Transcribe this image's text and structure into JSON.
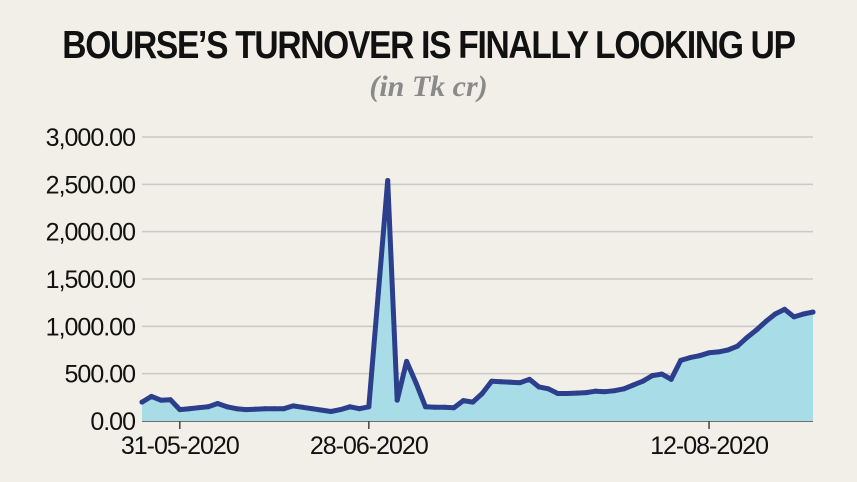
{
  "chart_data": {
    "type": "area",
    "title": "BOURSE’S TURNOVER IS FINALLY LOOKING UP",
    "subtitle": "(in Tk cr)",
    "xlabel": "",
    "ylabel": "",
    "ylim": [
      0,
      3000
    ],
    "y_ticks": [
      0,
      500,
      1000,
      1500,
      2000,
      2500,
      3000
    ],
    "y_tick_labels": [
      "0.00",
      "500.00",
      "1,000.00",
      "1,500.00",
      "2,000.00",
      "2,500.00",
      "3,000.00"
    ],
    "x_tick_labels": [
      {
        "label": "31-05-2020",
        "index": 4
      },
      {
        "label": "28-06-2020",
        "index": 24
      },
      {
        "label": "12-08-2020",
        "index": 60
      }
    ],
    "grid": true,
    "colors": {
      "line": "#2b3f8c",
      "fill": "#a8dce6",
      "grid": "#c9c9c9",
      "background": "#f2efe8"
    },
    "values": [
      200,
      260,
      220,
      225,
      120,
      130,
      140,
      150,
      185,
      150,
      130,
      120,
      125,
      130,
      130,
      130,
      160,
      145,
      130,
      115,
      100,
      120,
      150,
      130,
      150,
      1350,
      2540,
      220,
      630,
      400,
      150,
      145,
      145,
      140,
      215,
      200,
      290,
      420,
      415,
      410,
      405,
      440,
      360,
      340,
      290,
      290,
      295,
      300,
      315,
      310,
      320,
      340,
      380,
      420,
      480,
      495,
      440,
      640,
      670,
      690,
      720,
      730,
      750,
      790,
      880,
      960,
      1050,
      1130,
      1180,
      1100,
      1130,
      1150
    ]
  }
}
